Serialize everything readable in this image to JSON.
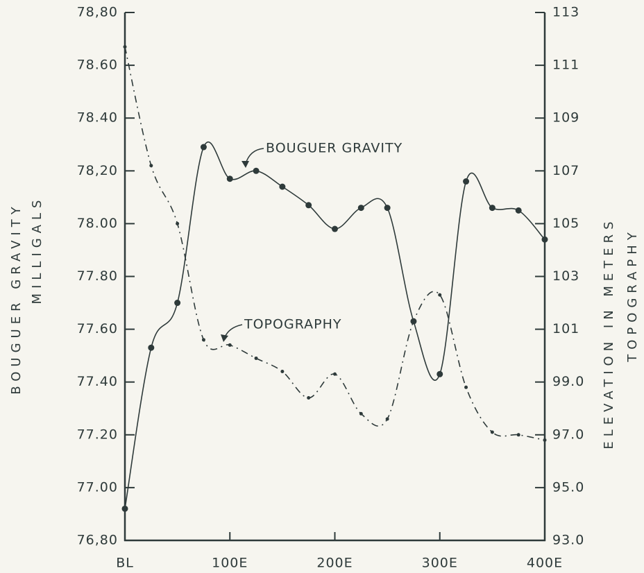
{
  "chart_data": {
    "type": "line",
    "ylabel": [
      "BOUGUER GRAVITY",
      "MILLIGALS"
    ],
    "y2label": [
      "ELEVATION IN METERS",
      "TOPOGRAPHY"
    ],
    "annotations": [
      "BOUGUER GRAVITY",
      "TOPOGRAPHY"
    ],
    "x": [
      0,
      25,
      50,
      75,
      100,
      125,
      150,
      175,
      200,
      225,
      250,
      275,
      300,
      325,
      350,
      375,
      400
    ],
    "xlim": [
      0,
      400
    ],
    "xticks": [
      {
        "value": 0,
        "label": "BL"
      },
      {
        "value": 100,
        "label": "100E"
      },
      {
        "value": 200,
        "label": "200E"
      },
      {
        "value": 300,
        "label": "300E"
      },
      {
        "value": 400,
        "label": "400E"
      }
    ],
    "ylim": [
      76.8,
      78.8
    ],
    "yticks": [
      {
        "value": 76.8,
        "label": "76,80"
      },
      {
        "value": 77.0,
        "label": "77.00"
      },
      {
        "value": 77.2,
        "label": "77.20"
      },
      {
        "value": 77.4,
        "label": "77.40"
      },
      {
        "value": 77.6,
        "label": "77.60"
      },
      {
        "value": 77.8,
        "label": "77.80"
      },
      {
        "value": 78.0,
        "label": "78.00"
      },
      {
        "value": 78.2,
        "label": "78,20"
      },
      {
        "value": 78.4,
        "label": "78.40"
      },
      {
        "value": 78.6,
        "label": "78.60"
      },
      {
        "value": 78.8,
        "label": "78,80"
      }
    ],
    "y2lim": [
      93,
      113
    ],
    "y2ticks": [
      {
        "value": 93,
        "label": "93.0"
      },
      {
        "value": 95,
        "label": "95.0"
      },
      {
        "value": 97,
        "label": "97.0"
      },
      {
        "value": 99,
        "label": "99.0"
      },
      101,
      103,
      105,
      107,
      109,
      111,
      113
    ],
    "series": [
      {
        "name": "BOUGUER GRAVITY",
        "color": "#2e3a3a",
        "dashed": false,
        "values": [
          76.92,
          77.53,
          77.7,
          78.29,
          78.17,
          78.2,
          78.14,
          78.07,
          77.98,
          78.06,
          78.06,
          77.63,
          77.43,
          78.16,
          78.06,
          78.05,
          77.94
        ]
      },
      {
        "name": "TOPOGRAPHY",
        "color": "#2e3a3a",
        "dashed": true,
        "axis": "y2",
        "values": [
          111.7,
          107.2,
          105.0,
          100.6,
          100.4,
          99.9,
          99.4,
          98.4,
          99.3,
          97.8,
          97.6,
          101.3,
          102.3,
          98.8,
          97.1,
          97.0,
          96.8
        ]
      }
    ]
  }
}
